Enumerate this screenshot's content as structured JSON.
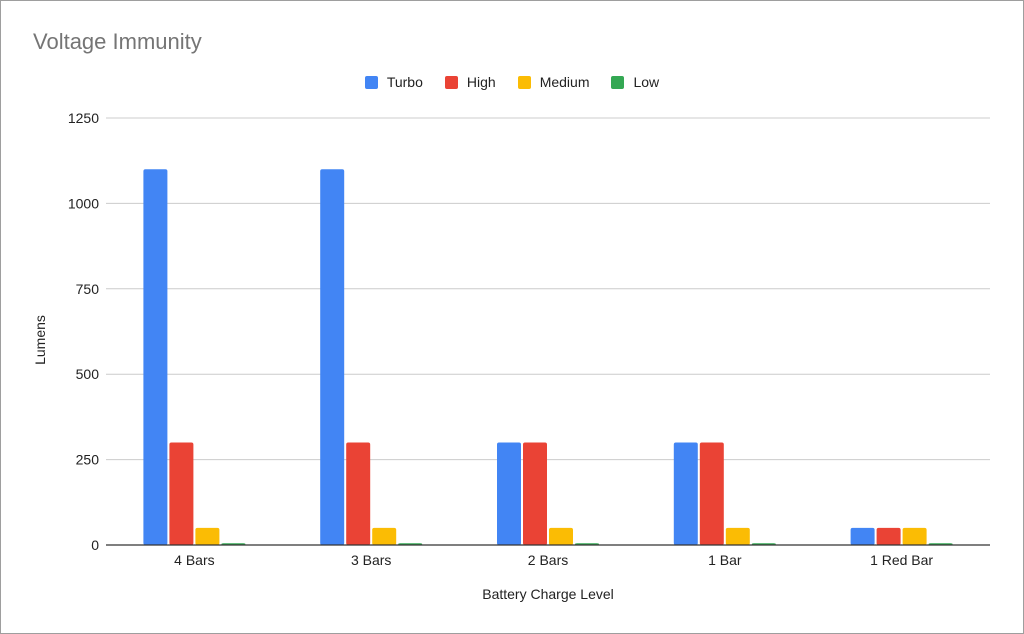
{
  "chart_data": {
    "type": "bar",
    "title": "Voltage Immunity",
    "xlabel": "Battery Charge Level",
    "ylabel": "Lumens",
    "categories": [
      "4 Bars",
      "3 Bars",
      "2 Bars",
      "1 Bar",
      "1 Red Bar"
    ],
    "series": [
      {
        "name": "Turbo",
        "color": "#4285f4",
        "values": [
          1100,
          1100,
          300,
          300,
          50
        ]
      },
      {
        "name": "High",
        "color": "#ea4335",
        "values": [
          300,
          300,
          300,
          300,
          50
        ]
      },
      {
        "name": "Medium",
        "color": "#fbbc04",
        "values": [
          50,
          50,
          50,
          50,
          50
        ]
      },
      {
        "name": "Low",
        "color": "#34a853",
        "values": [
          5,
          5,
          5,
          5,
          5
        ]
      }
    ],
    "ylim": [
      0,
      1250
    ],
    "yticks": [
      0,
      250,
      500,
      750,
      1000,
      1250
    ],
    "grid": true,
    "legend_position": "top"
  }
}
